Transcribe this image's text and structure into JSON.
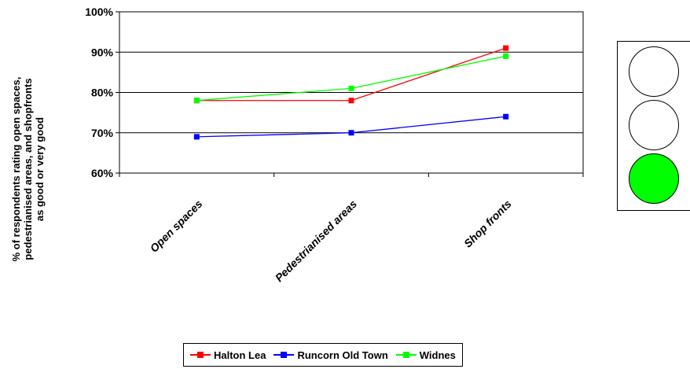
{
  "chart_data": {
    "type": "line",
    "title": "",
    "xlabel": "",
    "ylabel": "% of respondents rating open spaces,\npedestrianised areas, and shopfronts\nas good or very good",
    "categories": [
      "Open spaces",
      "Pedestrianised areas",
      "Shop fronts"
    ],
    "ylim": [
      60,
      100
    ],
    "yticks": [
      "60%",
      "70%",
      "80%",
      "90%",
      "100%"
    ],
    "grid": true,
    "legend_position": "bottom",
    "series": [
      {
        "name": "Halton Lea",
        "color": "#ff0000",
        "values": [
          78,
          78,
          91
        ]
      },
      {
        "name": "Runcorn Old Town",
        "color": "#0000ff",
        "values": [
          69,
          70,
          74
        ]
      },
      {
        "name": "Widnes",
        "color": "#00ff00",
        "values": [
          78,
          81,
          89
        ]
      }
    ]
  },
  "traffic_light": {
    "lights": [
      {
        "name": "top",
        "color": "#ffffff"
      },
      {
        "name": "middle",
        "color": "#ffffff"
      },
      {
        "name": "bottom",
        "color": "#00ff00"
      }
    ]
  }
}
